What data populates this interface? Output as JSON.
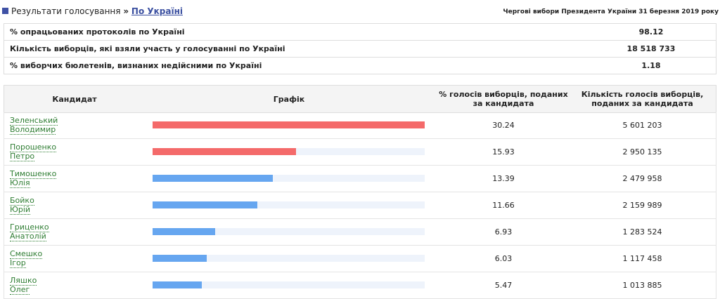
{
  "header": {
    "breadcrumb": [
      "Результати голосування",
      "По Україні"
    ],
    "separator": "»",
    "election": "Чергові вибори Президента України 31 березня 2019 року"
  },
  "summary": [
    [
      "% опрацьованих протоколів по Україні",
      98.12
    ],
    [
      "Кількість виборців, які взяли участь у голосуванні по Україні",
      "18 518 733"
    ],
    [
      "% виборчих бюлетенів, визнаних недійсними по Україні",
      1.18
    ]
  ],
  "table": {
    "columns": [
      "Кандидат",
      "Графік",
      "% голосів виборців, поданих за кандидата",
      "Кількість голосів виборців, поданих за кандидата"
    ],
    "rows": [
      {
        "surname": "Зеленський",
        "name": "Володимир",
        "percent": 30.24,
        "votes": "5 601 203",
        "color": "#f46a6a"
      },
      {
        "surname": "Порошенко",
        "name": "Петро",
        "percent": 15.93,
        "votes": "2 950 135",
        "color": "#f46a6a"
      },
      {
        "surname": "Тимошенко",
        "name": "Юлія",
        "percent": 13.39,
        "votes": "2 479 958",
        "color": "#66a6f0"
      },
      {
        "surname": "Бойко",
        "name": "Юрій",
        "percent": 11.66,
        "votes": "2 159 989",
        "color": "#66a6f0"
      },
      {
        "surname": "Гриценко",
        "name": "Анатолій",
        "percent": 6.93,
        "votes": "1 283 524",
        "color": "#66a6f0"
      },
      {
        "surname": "Смешко",
        "name": "Ігор",
        "percent": 6.03,
        "votes": "1 117 458",
        "color": "#66a6f0"
      },
      {
        "surname": "Ляшко",
        "name": "Олег",
        "percent": 5.47,
        "votes": "1 013 885",
        "color": "#66a6f0"
      }
    ]
  }
}
